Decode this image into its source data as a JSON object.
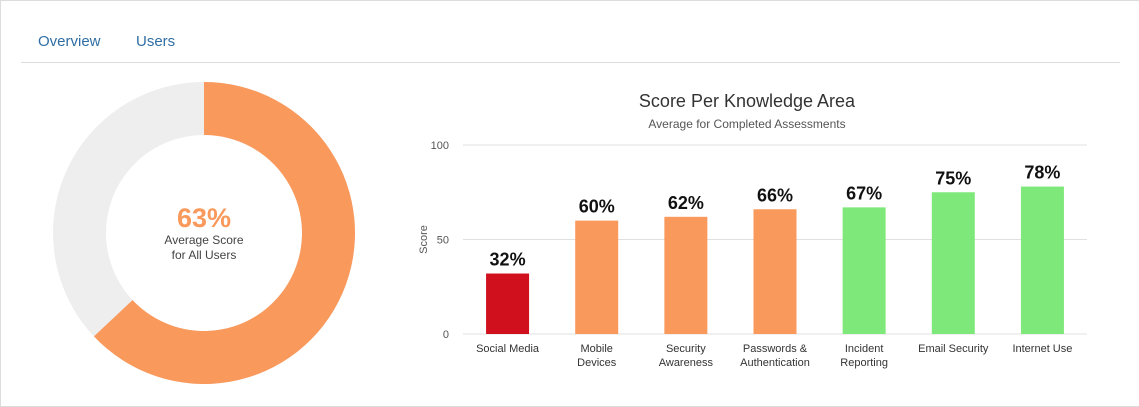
{
  "tabs": [
    {
      "label": "Overview"
    },
    {
      "label": "Users"
    }
  ],
  "donut": {
    "value": 63,
    "value_label": "63%",
    "caption_line1": "Average Score",
    "caption_line2": "for All Users",
    "fill_color": "#f9995c",
    "track_color": "#eeeeee"
  },
  "chart_data": {
    "type": "bar",
    "title": "Score Per Knowledge Area",
    "subtitle": "Average for Completed Assessments",
    "xlabel": "",
    "ylabel": "Score",
    "ylim": [
      0,
      100
    ],
    "yticks": [
      0,
      50,
      100
    ],
    "grid": true,
    "categories": [
      [
        "Social Media"
      ],
      [
        "Mobile",
        "Devices"
      ],
      [
        "Security",
        "Awareness"
      ],
      [
        "Passwords &",
        "Authentication"
      ],
      [
        "Incident",
        "Reporting"
      ],
      [
        "Email Security"
      ],
      [
        "Internet Use"
      ]
    ],
    "values": [
      32,
      60,
      62,
      66,
      67,
      75,
      78
    ],
    "data_labels": [
      "32%",
      "60%",
      "62%",
      "66%",
      "67%",
      "75%",
      "78%"
    ],
    "colors": [
      "#d0101d",
      "#f9995c",
      "#f9995c",
      "#f9995c",
      "#7fe87a",
      "#7fe87a",
      "#7fe87a"
    ]
  }
}
